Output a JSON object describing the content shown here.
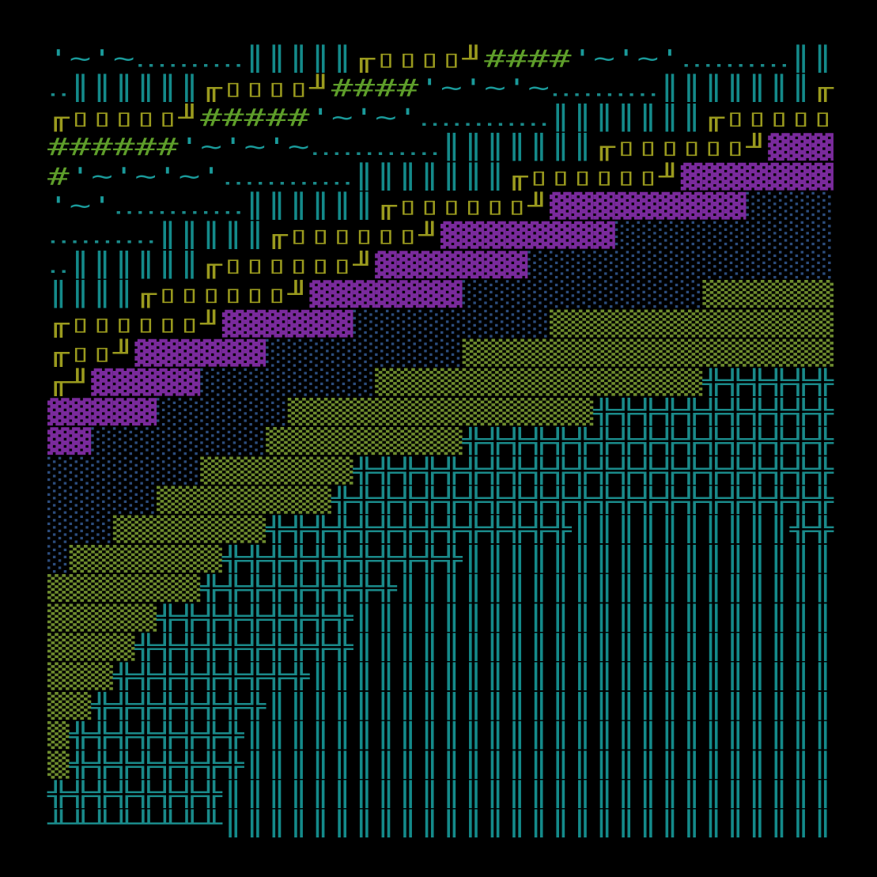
{
  "art": {
    "rows": [
      [
        "'~'~",
        "‥‥‥‥‥",
        "║║║║║",
        "╓▯▯▯▯╜",
        "####",
        "'~'~'",
        "‥‥‥‥‥",
        "║║"
      ],
      [
        "‥",
        "║║║║║║",
        "╓▯▯▯▯╜",
        "####",
        "'~'~'~",
        "‥‥‥‥‥",
        "║║║║║║║",
        "╓"
      ],
      [
        "╓▯▯▯▯▯╜",
        "#####",
        "'~'~'",
        "‥‥‥‥‥‥",
        "║║║║║║║",
        "╓▯▯▯▯▯"
      ],
      [
        "######",
        "'~'~'~",
        "‥‥‥‥‥‥",
        "║║║║║║║",
        "╓▯▯▯▯▯▯╜",
        "▓▓▓"
      ],
      [
        "#",
        "'~'~'~'",
        "‥‥‥‥‥‥",
        "║║║║║║║",
        "╓▯▯▯▯▯▯╜",
        "▓▓▓▓▓▓▓"
      ],
      [
        "'~'",
        "‥‥‥‥‥‥",
        "║║║║║║",
        "╓▯▯▯▯▯▯╜",
        "▓▓▓▓▓▓▓▓▓",
        "░░░░"
      ],
      [
        "‥‥‥‥‥",
        "║║║║║",
        "╓▯▯▯▯▯▯╜",
        "▓▓▓▓▓▓▓▓",
        "░░░░░░░░░░"
      ],
      [
        "‥",
        "║║║║║║",
        "╓▯▯▯▯▯▯╜",
        "▓▓▓▓▓▓▓",
        "░░░░░░░░░░░░░░"
      ],
      [
        "║║║║",
        "╓▯▯▯▯▯▯╜",
        "▓▓▓▓▓▓▓",
        "░░░░░░░░░░░",
        "▒▒▒▒▒▒"
      ],
      [
        "╓▯▯▯▯▯▯╜",
        "▓▓▓▓▓▓",
        "░░░░░░░░░",
        "▒▒▒▒▒▒▒▒▒▒▒▒▒"
      ],
      [
        "╓▯▯╜",
        "▓▓▓▓▓▓",
        "░░░░░░░░░",
        "▒▒▒▒▒▒▒▒▒▒▒▒▒▒▒▒▒"
      ],
      [
        "╓╜",
        "▓▓▓▓▓",
        "░░░░░░░░",
        "▒▒▒▒▒▒▒▒▒▒▒▒▒▒▒",
        "╬╬╬╬╬╬"
      ],
      [
        "▓▓▓▓▓",
        "░░░░░░",
        "▒▒▒▒▒▒▒▒▒▒▒▒▒▒",
        "╬╬╬╬╬╬╬╬╬╬╬"
      ],
      [
        "▓▓",
        "░░░░░░░░",
        "▒▒▒▒▒▒▒▒▒",
        "╬╬╬╬╬╬╬╬╬╬╬╬╬╬╬╬╬"
      ],
      [
        "░░░░░░░",
        "▒▒▒▒▒▒▒",
        "╬╬╬╬╬╬╬╬╬╬╬╬╬╬╬╬╬╬╬╬╬╬"
      ],
      [
        "░░░░░",
        "▒▒▒▒▒▒▒▒",
        "╬╬╬╬╬╬╬╬╬╬╬╬╬╬╬╬╬╬╬╬╬╬╬"
      ],
      [
        "░░░",
        "▒▒▒▒▒▒▒",
        "╬╬╬╬╬╬╬╬╬╬╬╬╬╬",
        "║║║║║║║║║║",
        "╬╬"
      ],
      [
        "░",
        "▒▒▒▒▒▒▒",
        "╬╬╬╬╬╬╬╬╬╬╬",
        "║║║║║║║║║║║║║║║║║"
      ],
      [
        "▒▒▒▒▒▒▒",
        "╬╬╬╬╬╬╬╬╬",
        "║║║║║║║║║║║║║║║║║║║║"
      ],
      [
        "▒▒▒▒▒",
        "╬╬╬╬╬╬╬╬╬",
        "║║║║║║║║║║║║║║║║║║║║║║"
      ],
      [
        "▒▒▒▒",
        "╬╬╬╬╬╬╬╬╬╬",
        "║║║║║║║║║║║║║║║║║║║║║║"
      ],
      [
        "▒▒▒",
        "╬╬╬╬╬╬╬╬╬",
        "║║║║║║║║║║║║║║║║║║║║║║║║"
      ],
      [
        "▒▒",
        "╬╬╬╬╬╬╬╬",
        "║║║║║║║║║║║║║║║║║║║║║║║║║║"
      ],
      [
        "▒",
        "╬╬╬╬╬╬╬╬",
        "║║║║║║║║║║║║║║║║║║║║║║║║║║║"
      ],
      [
        "▒",
        "╬╬╬╬╬╬╬╬",
        "║║║║║║║║║║║║║║║║║║║║║║║║║║║"
      ],
      [
        "╬╬╬╬╬╬╬╬",
        "║║║║║║║║║║║║║║║║║║║║║║║║║║║║"
      ],
      [
        "╨╨╨╨╨╨╨╨",
        "║║║║║║║║║║║║║║║║║║║║║║║║║║║║"
      ]
    ]
  }
}
